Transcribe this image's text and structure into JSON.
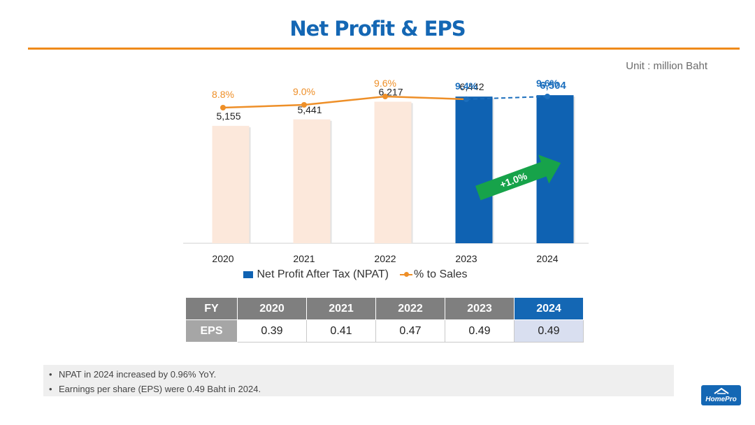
{
  "page": {
    "title": "Net Profit & EPS",
    "unit": "Unit : million Baht"
  },
  "colors": {
    "brand_blue": "#1467b4",
    "bar_blue": "#0f62b2",
    "bar_light": "#fce8db",
    "orange": "#ef8a1a",
    "green_arrow": "#17a34a"
  },
  "chart_data": {
    "type": "bar",
    "categories": [
      "2020",
      "2021",
      "2022",
      "2023",
      "2024"
    ],
    "series": [
      {
        "name": "Net Profit After Tax (NPAT)",
        "values": [
          5155,
          5441,
          6217,
          6442,
          6504
        ],
        "labels": [
          "5,155",
          "5,441",
          "6,217",
          "6,442",
          "6,504"
        ]
      },
      {
        "name": "% to Sales",
        "type": "line",
        "values": [
          8.8,
          9.0,
          9.6,
          9.4,
          9.6
        ],
        "labels": [
          "8.8%",
          "9.0%",
          "9.6%",
          "9.4%",
          "9.6%"
        ]
      }
    ],
    "highlighted_categories": [
      "2023",
      "2024"
    ],
    "annotation": "+1.0%",
    "ylim": [
      0,
      7000
    ],
    "grid": false,
    "legend_position": "bottom"
  },
  "legend": {
    "npat": "Net Profit After Tax (NPAT)",
    "pct": "% to Sales"
  },
  "eps_table": {
    "header_label": "FY",
    "row_label": "EPS",
    "years": [
      "2020",
      "2021",
      "2022",
      "2023",
      "2024"
    ],
    "values": [
      "0.39",
      "0.41",
      "0.47",
      "0.49",
      "0.49"
    ]
  },
  "notes": [
    "NPAT in 2024 increased by 0.96% YoY.",
    "Earnings per share (EPS) were 0.49 Baht in 2024."
  ],
  "logo": {
    "text": "HomePro",
    "icon": "house-roof-icon"
  }
}
